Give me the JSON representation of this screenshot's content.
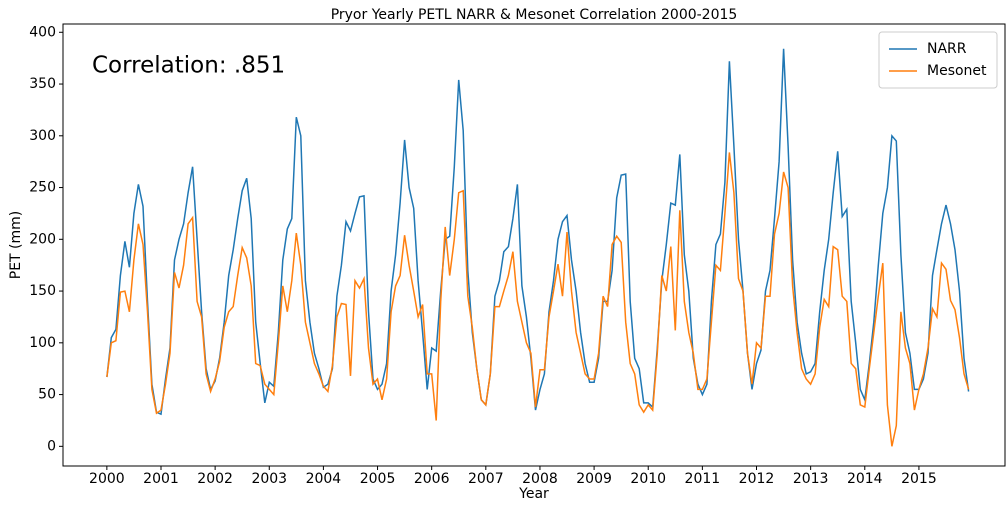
{
  "chart_data": {
    "type": "line",
    "title": "Pryor Yearly PETL NARR & Mesonet Correlation 2000-2015",
    "xlabel": "Year",
    "ylabel": "PET (mm)",
    "annotation": "Correlation: .851",
    "xlim": [
      1999.19,
      2016.59
    ],
    "ylim": [
      -19,
      408
    ],
    "xticks": [
      2000,
      2001,
      2002,
      2003,
      2004,
      2005,
      2006,
      2007,
      2008,
      2009,
      2010,
      2011,
      2012,
      2013,
      2014,
      2015
    ],
    "yticks": [
      0,
      50,
      100,
      150,
      200,
      250,
      300,
      350,
      400
    ],
    "legend": "upper right",
    "x": [
      2000,
      2000.083,
      2000.167,
      2000.25,
      2000.333,
      2000.417,
      2000.5,
      2000.583,
      2000.667,
      2000.75,
      2000.833,
      2000.917,
      2001,
      2001.083,
      2001.167,
      2001.25,
      2001.333,
      2001.417,
      2001.5,
      2001.583,
      2001.667,
      2001.75,
      2001.833,
      2001.917,
      2002,
      2002.083,
      2002.167,
      2002.25,
      2002.333,
      2002.417,
      2002.5,
      2002.583,
      2002.667,
      2002.75,
      2002.833,
      2002.917,
      2003,
      2003.083,
      2003.167,
      2003.25,
      2003.333,
      2003.417,
      2003.5,
      2003.583,
      2003.667,
      2003.75,
      2003.833,
      2003.917,
      2004,
      2004.083,
      2004.167,
      2004.25,
      2004.333,
      2004.417,
      2004.5,
      2004.583,
      2004.667,
      2004.75,
      2004.833,
      2004.917,
      2005,
      2005.083,
      2005.167,
      2005.25,
      2005.333,
      2005.417,
      2005.5,
      2005.583,
      2005.667,
      2005.75,
      2005.833,
      2005.917,
      2006,
      2006.083,
      2006.167,
      2006.25,
      2006.333,
      2006.417,
      2006.5,
      2006.583,
      2006.667,
      2006.75,
      2006.833,
      2006.917,
      2007,
      2007.083,
      2007.167,
      2007.25,
      2007.333,
      2007.417,
      2007.5,
      2007.583,
      2007.667,
      2007.75,
      2007.833,
      2007.917,
      2008,
      2008.083,
      2008.167,
      2008.25,
      2008.333,
      2008.417,
      2008.5,
      2008.583,
      2008.667,
      2008.75,
      2008.833,
      2008.917,
      2009,
      2009.083,
      2009.167,
      2009.25,
      2009.333,
      2009.417,
      2009.5,
      2009.583,
      2009.667,
      2009.75,
      2009.833,
      2009.917,
      2010,
      2010.083,
      2010.167,
      2010.25,
      2010.333,
      2010.417,
      2010.5,
      2010.583,
      2010.667,
      2010.75,
      2010.833,
      2010.917,
      2011,
      2011.083,
      2011.167,
      2011.25,
      2011.333,
      2011.417,
      2011.5,
      2011.583,
      2011.667,
      2011.75,
      2011.833,
      2011.917,
      2012,
      2012.083,
      2012.167,
      2012.25,
      2012.333,
      2012.417,
      2012.5,
      2012.583,
      2012.667,
      2012.75,
      2012.833,
      2012.917,
      2013,
      2013.083,
      2013.167,
      2013.25,
      2013.333,
      2013.417,
      2013.5,
      2013.583,
      2013.667,
      2013.75,
      2013.833,
      2013.917,
      2014,
      2014.083,
      2014.167,
      2014.25,
      2014.333,
      2014.417,
      2014.5,
      2014.583,
      2014.667,
      2014.75,
      2014.833,
      2014.917,
      2015,
      2015.083,
      2015.167,
      2015.25,
      2015.333,
      2015.417,
      2015.5,
      2015.583,
      2015.667,
      2015.75,
      2015.833,
      2015.917
    ],
    "series": [
      {
        "name": "NARR",
        "color": "#1f77b4",
        "values": [
          67,
          105,
          113,
          165,
          198,
          173,
          225,
          253,
          232,
          140,
          60,
          33,
          31,
          65,
          95,
          180,
          200,
          215,
          245,
          270,
          200,
          130,
          75,
          55,
          63,
          85,
          120,
          165,
          190,
          220,
          247,
          259,
          220,
          120,
          80,
          42,
          62,
          58,
          110,
          180,
          210,
          220,
          318,
          300,
          160,
          120,
          90,
          75,
          57,
          60,
          75,
          145,
          175,
          217,
          208,
          225,
          241,
          242,
          130,
          65,
          55,
          60,
          80,
          150,
          185,
          235,
          296,
          250,
          230,
          160,
          110,
          55,
          95,
          92,
          150,
          200,
          203,
          270,
          354,
          305,
          170,
          110,
          75,
          45,
          40,
          70,
          145,
          160,
          188,
          193,
          220,
          253,
          155,
          125,
          85,
          35,
          55,
          70,
          130,
          160,
          200,
          217,
          223,
          180,
          150,
          110,
          80,
          62,
          62,
          85,
          140,
          140,
          170,
          240,
          262,
          263,
          140,
          85,
          75,
          42,
          42,
          38,
          95,
          160,
          195,
          235,
          233,
          282,
          185,
          150,
          85,
          60,
          50,
          60,
          140,
          195,
          205,
          255,
          372,
          290,
          200,
          150,
          90,
          55,
          80,
          93,
          150,
          170,
          220,
          275,
          384,
          290,
          180,
          120,
          90,
          70,
          72,
          80,
          130,
          170,
          200,
          245,
          285,
          222,
          229,
          140,
          100,
          55,
          45,
          80,
          120,
          175,
          225,
          250,
          300,
          295,
          185,
          110,
          90,
          55,
          55,
          65,
          90,
          165,
          190,
          215,
          233,
          215,
          190,
          150,
          85,
          53
        ]
      },
      {
        "name": "Mesonet",
        "color": "#ff7f0e",
        "values": [
          67,
          100,
          102,
          149,
          150,
          130,
          180,
          215,
          195,
          130,
          55,
          32,
          35,
          60,
          90,
          168,
          153,
          175,
          215,
          221,
          140,
          125,
          70,
          53,
          65,
          82,
          115,
          130,
          135,
          165,
          192,
          182,
          155,
          80,
          78,
          60,
          55,
          50,
          100,
          155,
          130,
          160,
          206,
          175,
          120,
          100,
          80,
          70,
          58,
          53,
          78,
          125,
          138,
          137,
          68,
          160,
          153,
          162,
          95,
          60,
          65,
          45,
          65,
          130,
          155,
          165,
          204,
          175,
          150,
          125,
          137,
          70,
          70,
          25,
          140,
          212,
          165,
          200,
          245,
          247,
          145,
          115,
          75,
          45,
          40,
          70,
          135,
          135,
          150,
          165,
          188,
          140,
          120,
          100,
          90,
          38,
          74,
          74,
          125,
          150,
          176,
          145,
          207,
          150,
          110,
          90,
          70,
          65,
          65,
          90,
          145,
          135,
          195,
          203,
          197,
          120,
          80,
          70,
          40,
          33,
          40,
          35,
          90,
          165,
          150,
          193,
          112,
          228,
          140,
          110,
          90,
          55,
          55,
          65,
          120,
          175,
          170,
          225,
          284,
          245,
          162,
          150,
          90,
          60,
          100,
          95,
          145,
          145,
          205,
          225,
          265,
          250,
          155,
          110,
          75,
          65,
          60,
          70,
          115,
          142,
          135,
          193,
          190,
          145,
          140,
          80,
          75,
          40,
          38,
          75,
          110,
          145,
          177,
          40,
          0,
          20,
          130,
          95,
          80,
          35,
          55,
          70,
          95,
          133,
          125,
          177,
          171,
          141,
          132,
          105,
          70,
          55
        ]
      }
    ]
  }
}
